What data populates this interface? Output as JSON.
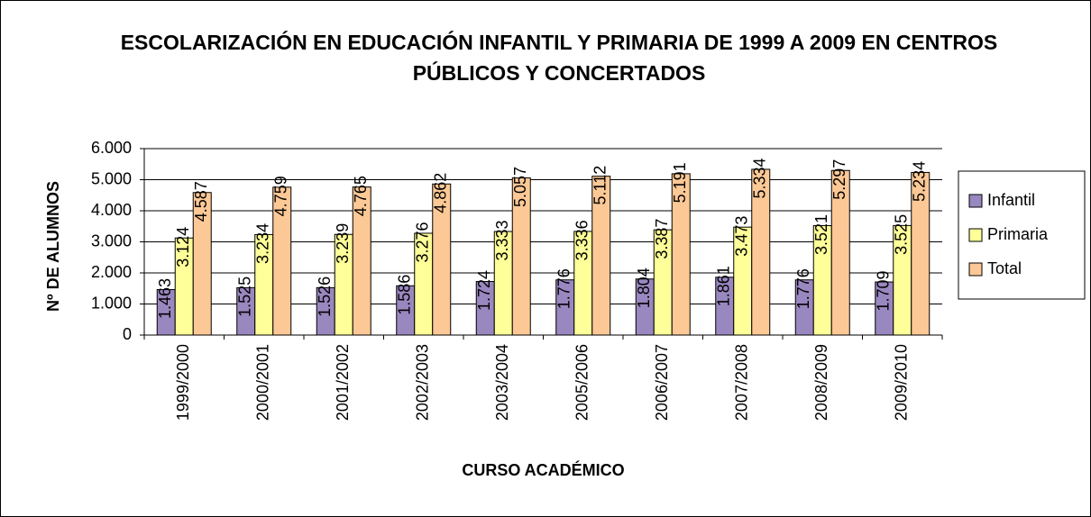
{
  "chart_data": {
    "type": "bar",
    "title": "ESCOLARIZACIÓN EN EDUCACIÓN INFANTIL Y PRIMARIA DE 1999 A 2009 EN CENTROS PÚBLICOS Y CONCERTADOS",
    "x_label": "CURSO ACADÉMICO",
    "y_label": "Nº DE ALUMNOS",
    "categories": [
      "1999/2000",
      "2000/2001",
      "2001/2002",
      "2002/2003",
      "2003/2004",
      "2005/2006",
      "2006/2007",
      "2007/2008",
      "2008/2009",
      "2009/2010"
    ],
    "series": [
      {
        "name": "Infantil",
        "color": "#9987bf",
        "values": [
          1463,
          1525,
          1526,
          1586,
          1724,
          1776,
          1804,
          1861,
          1776,
          1709
        ],
        "value_labels": [
          "1.463",
          "1.525",
          "1.526",
          "1.586",
          "1.724",
          "1.776",
          "1.804",
          "1.861",
          "1.776",
          "1.709"
        ]
      },
      {
        "name": "Primaria",
        "color": "#ffff99",
        "values": [
          3124,
          3234,
          3239,
          3276,
          3333,
          3336,
          3387,
          3473,
          3521,
          3525
        ],
        "value_labels": [
          "3.124",
          "3.234",
          "3.239",
          "3.276",
          "3.333",
          "3.336",
          "3.387",
          "3.473",
          "3.521",
          "3.525"
        ]
      },
      {
        "name": "Total",
        "color": "#fcc896",
        "values": [
          4587,
          4759,
          4765,
          4862,
          5057,
          5112,
          5191,
          5334,
          5297,
          5234
        ],
        "value_labels": [
          "4.587",
          "4.759",
          "4.765",
          "4.862",
          "5.057",
          "5.112",
          "5.191",
          "5.334",
          "5.297",
          "5.234"
        ]
      }
    ],
    "ylim": [
      0,
      6000
    ],
    "yticks": [
      0,
      {
        "value": 1000,
        "label": "1.000"
      },
      {
        "value": 2000,
        "label": "2.000"
      },
      {
        "value": 3000,
        "label": "3.000"
      },
      {
        "value": 4000,
        "label": "4.000"
      },
      {
        "value": 5000,
        "label": "5.000"
      },
      {
        "value": 6000,
        "label": "6.000"
      }
    ],
    "grid": true,
    "legend": "right"
  }
}
